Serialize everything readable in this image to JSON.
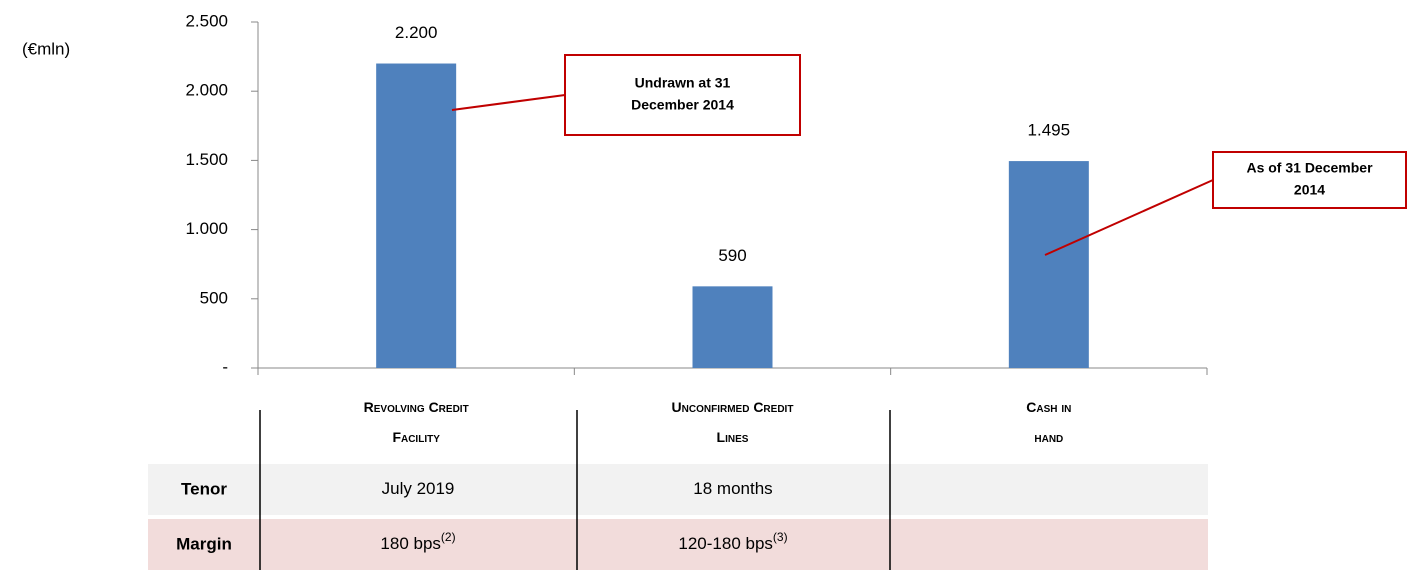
{
  "chart_data": {
    "type": "bar",
    "y_label": "(€mln)",
    "categories": [
      "Revolving Credit Facility",
      "Unconfirmed Credit Lines",
      "Cash in hand"
    ],
    "values": [
      2200,
      590,
      1495
    ],
    "value_labels": [
      "2.200",
      "590",
      "1.495"
    ],
    "color": "#4f81bd",
    "ylim": [
      0,
      2500
    ],
    "yticks": [
      {
        "value": 0,
        "label": "-"
      },
      500,
      {
        "value": 1000,
        "label": "1.000"
      },
      {
        "value": 1500,
        "label": "1.500"
      },
      {
        "value": 2000,
        "label": "2.000"
      },
      {
        "value": 2500,
        "label": "2.500"
      }
    ],
    "annotations": [
      {
        "text": [
          "Undrawn at 31",
          "December 2014"
        ],
        "category": 0
      },
      {
        "text": [
          "As of 31 December",
          "2014"
        ],
        "category": 2
      }
    ]
  },
  "table": {
    "rows": [
      {
        "label": "Tenor",
        "cells": [
          {
            "text": "July 2019"
          },
          {
            "text": "18 months"
          }
        ]
      },
      {
        "label": "Margin",
        "cells": [
          {
            "text": "180 bps",
            "note": "(2)"
          },
          {
            "text": "120-180 bps",
            "note": "(3)"
          }
        ]
      }
    ]
  }
}
